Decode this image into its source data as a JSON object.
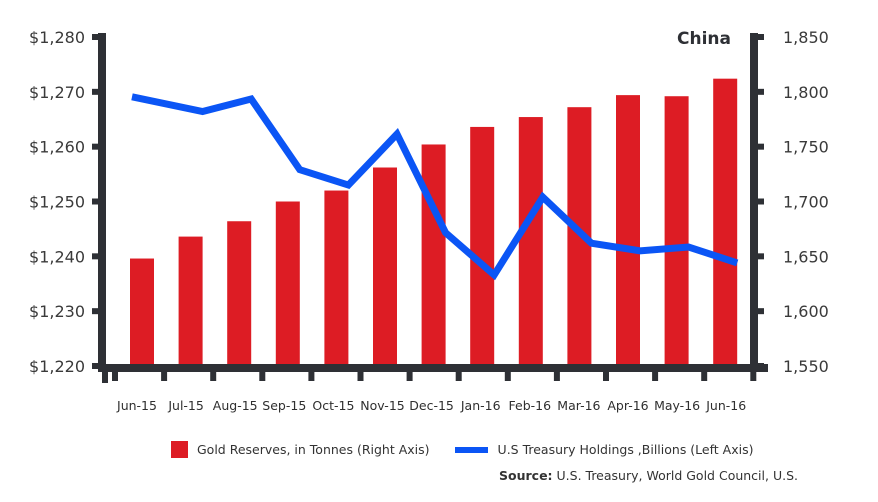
{
  "chart_data": {
    "type": "bar+line",
    "title": "China",
    "categories": [
      "Jun-15",
      "Jul-15",
      "Aug-15",
      "Sep-15",
      "Oct-15",
      "Nov-15",
      "Dec-15",
      "Jan-16",
      "Feb-16",
      "Mar-16",
      "Apr-16",
      "May-16",
      "Jun-16"
    ],
    "series": [
      {
        "name": "Gold Reserves, in Tonnes (Right Axis)",
        "type": "bar",
        "axis": "right",
        "color": "#dd1c24",
        "values": [
          1648,
          1668,
          1682,
          1700,
          1710,
          1731,
          1752,
          1768,
          1777,
          1786,
          1797,
          1796,
          1812
        ]
      },
      {
        "name": "U.S Treasury Holdings ,Billions (Left Axis)",
        "type": "line",
        "axis": "left",
        "color": "#0b55f5",
        "values": [
          1269.1,
          1266.4,
          1268.7,
          1255.8,
          1253.0,
          1262.3,
          1244.3,
          1236.6,
          1250.8,
          1242.4,
          1241.0,
          1241.7,
          1238.8
        ]
      }
    ],
    "left_axis": {
      "ylim": [
        1220,
        1280
      ],
      "ticks": [
        1220,
        1230,
        1240,
        1250,
        1260,
        1270,
        1280
      ],
      "tick_labels": [
        "$1,220",
        "$1,230",
        "$1,240",
        "$1,250",
        "$1,260",
        "$1,270",
        "$1,280"
      ]
    },
    "right_axis": {
      "ylim": [
        1550,
        1850
      ],
      "ticks": [
        1550,
        1600,
        1650,
        1700,
        1750,
        1800,
        1850
      ],
      "tick_labels": [
        "1,550",
        "1,600",
        "1,650",
        "1,700",
        "1,750",
        "1,800",
        "1,850"
      ]
    },
    "xlabel": "",
    "grid": false,
    "legend_position": "bottom",
    "axis_color": "#2e3035"
  },
  "legend": {
    "bar_label": "Gold Reserves, in Tonnes (Right Axis)",
    "line_label": "U.S Treasury Holdings ,Billions (Left Axis)"
  },
  "source": {
    "label": "Source:",
    "text": " U.S. Treasury, World Gold Council, U.S."
  }
}
